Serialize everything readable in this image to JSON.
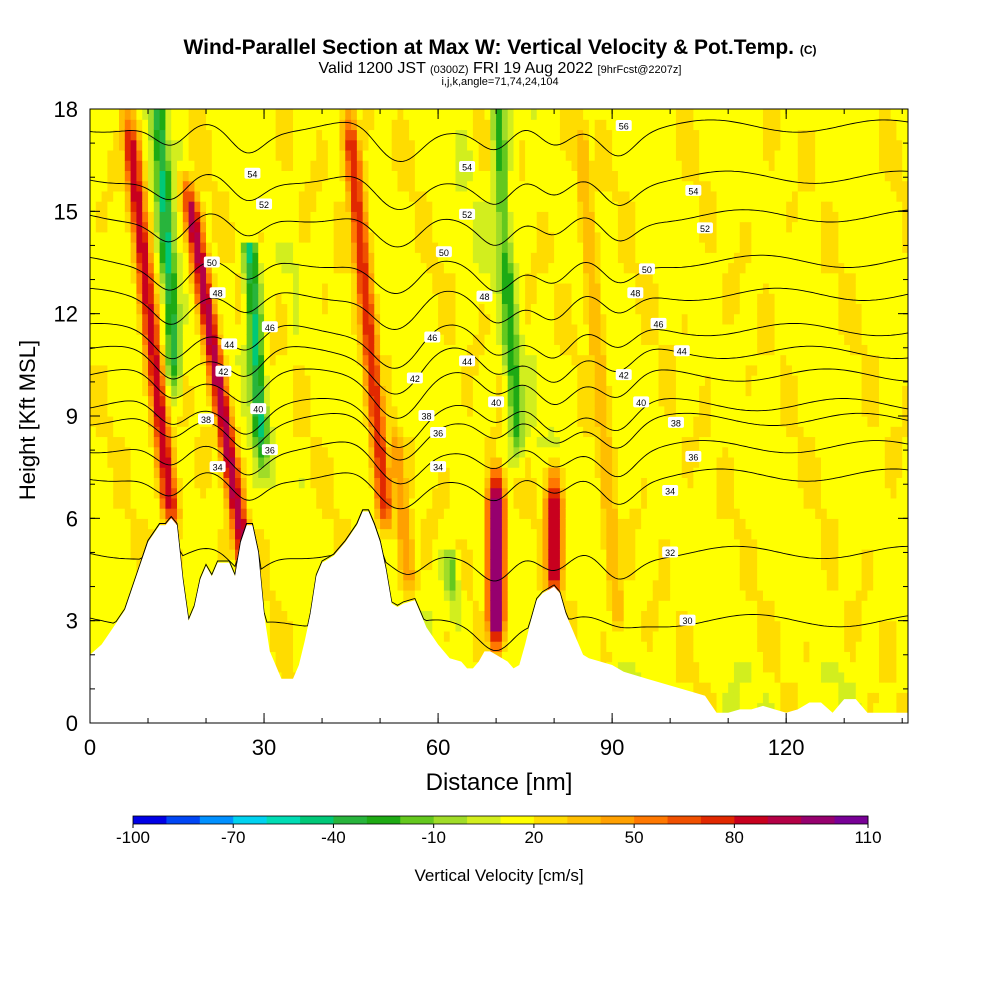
{
  "title": {
    "main": "Wind-Parallel Section at Max W: Vertical Velocity & Pot.Temp.",
    "copyright": "(C)",
    "valid_prefix": "Valid 1200 JST",
    "utc_time": "(0300Z)",
    "valid_date": "FRI 19 Aug 2022",
    "forecast": "[9hrFcst@2207z]",
    "params": "i,j,k,angle=71,74,24,104"
  },
  "chart_data": {
    "type": "heatmap",
    "xlabel": "Distance [nm]",
    "ylabel": "Height [Kft MSL]",
    "xlim": [
      0,
      141
    ],
    "ylim": [
      0,
      18
    ],
    "x_ticks": [
      "0",
      "30",
      "60",
      "90",
      "120"
    ],
    "y_ticks": [
      "0",
      "3",
      "6",
      "9",
      "12",
      "15",
      "18"
    ],
    "x_tick_values": [
      0,
      30,
      60,
      90,
      120
    ],
    "y_tick_values": [
      0,
      3,
      6,
      9,
      12,
      15,
      18
    ],
    "colorbar": {
      "label": "Vertical Velocity [cm/s]",
      "tick_labels": [
        "-100",
        "-70",
        "-40",
        "-10",
        "20",
        "50",
        "80",
        "110"
      ],
      "colors": [
        "#0000e6",
        "#0046f5",
        "#0090ff",
        "#00d2f0",
        "#00dcb4",
        "#00c878",
        "#28b43c",
        "#1eaa14",
        "#64c81e",
        "#a0dc28",
        "#d2ee1e",
        "#ffff00",
        "#ffdc00",
        "#ffbe00",
        "#ffa000",
        "#ff7800",
        "#f05000",
        "#e12800",
        "#c8001e",
        "#b40046",
        "#96006e",
        "#780096"
      ]
    },
    "updrafts": [
      {
        "x": 14,
        "z_base": 6.0,
        "z_top": 18,
        "tilt": -0.35,
        "peak": 80
      },
      {
        "x": 27,
        "z_base": 4.5,
        "z_top": 16,
        "tilt": -0.5,
        "peak": 90
      },
      {
        "x": 51,
        "z_base": 6.0,
        "z_top": 18,
        "tilt": -0.3,
        "peak": 70
      },
      {
        "x": 55,
        "z_base": 4.0,
        "z_top": 9,
        "tilt": -0.3,
        "peak": 40
      },
      {
        "x": 70,
        "z_base": 2.5,
        "z_top": 7.5,
        "tilt": 0,
        "peak": 110
      },
      {
        "x": 80,
        "z_base": 4.0,
        "z_top": 7.5,
        "tilt": 0,
        "peak": 85
      },
      {
        "x": 91,
        "z_base": 3.0,
        "z_top": 18,
        "tilt": -0.25,
        "peak": 30
      }
    ],
    "downdrafts": [
      {
        "x": 15,
        "z_base": 9,
        "z_top": 18,
        "peak": -55
      },
      {
        "x": 30,
        "z_base": 7,
        "z_top": 14,
        "peak": -60
      },
      {
        "x": 74,
        "z_base": 7,
        "z_top": 18,
        "peak": -40
      },
      {
        "x": 63,
        "z_base": 2.5,
        "z_top": 5,
        "peak": -30
      }
    ],
    "terrain": [
      [
        0,
        2
      ],
      [
        2,
        2.3
      ],
      [
        4,
        2.8
      ],
      [
        6,
        3.3
      ],
      [
        8,
        4.3
      ],
      [
        10,
        5.3
      ],
      [
        12,
        5.8
      ],
      [
        13,
        5.8
      ],
      [
        14,
        6
      ],
      [
        15,
        5.8
      ],
      [
        16,
        4.2
      ],
      [
        17,
        3.0
      ],
      [
        18,
        3.4
      ],
      [
        19,
        4.2
      ],
      [
        20,
        4.6
      ],
      [
        21,
        4.3
      ],
      [
        22,
        4.7
      ],
      [
        24,
        4.7
      ],
      [
        25,
        4.3
      ],
      [
        26,
        5.3
      ],
      [
        27,
        5.8
      ],
      [
        28,
        5.8
      ],
      [
        29,
        5
      ],
      [
        30,
        3.2
      ],
      [
        31,
        2.1
      ],
      [
        32,
        1.7
      ],
      [
        33,
        1.3
      ],
      [
        35,
        1.3
      ],
      [
        36,
        1.7
      ],
      [
        37,
        2.4
      ],
      [
        38,
        3.2
      ],
      [
        39,
        4.3
      ],
      [
        40,
        4.7
      ],
      [
        42,
        4.9
      ],
      [
        44,
        5.3
      ],
      [
        46,
        5.8
      ],
      [
        47,
        6.2
      ],
      [
        48,
        6.2
      ],
      [
        49,
        5.8
      ],
      [
        50,
        5.3
      ],
      [
        51,
        4.5
      ],
      [
        52,
        3.5
      ],
      [
        53,
        3.4
      ],
      [
        54,
        3.5
      ],
      [
        56,
        3.6
      ],
      [
        57,
        3.2
      ],
      [
        58,
        2.8
      ],
      [
        60,
        2.3
      ],
      [
        61,
        2.1
      ],
      [
        62,
        1.9
      ],
      [
        64,
        1.8
      ],
      [
        65,
        1.6
      ],
      [
        66,
        1.6
      ],
      [
        67,
        1.8
      ],
      [
        68,
        2.1
      ],
      [
        69,
        2.1
      ],
      [
        70,
        2
      ],
      [
        72,
        1.8
      ],
      [
        73,
        1.6
      ],
      [
        74,
        1.7
      ],
      [
        75,
        2.3
      ],
      [
        76,
        3.0
      ],
      [
        77,
        3.6
      ],
      [
        78,
        3.8
      ],
      [
        79,
        3.9
      ],
      [
        80,
        4.0
      ],
      [
        81,
        3.8
      ],
      [
        82,
        3.2
      ],
      [
        84,
        2.4
      ],
      [
        85,
        2.0
      ],
      [
        86,
        1.9
      ],
      [
        88,
        1.8
      ],
      [
        90,
        1.7
      ],
      [
        92,
        1.5
      ],
      [
        94,
        1.4
      ],
      [
        96,
        1.3
      ],
      [
        98,
        1.2
      ],
      [
        100,
        1.1
      ],
      [
        102,
        1.0
      ],
      [
        104,
        0.9
      ],
      [
        106,
        0.8
      ],
      [
        108,
        0.3
      ],
      [
        110,
        0.3
      ],
      [
        112,
        0.4
      ],
      [
        114,
        0.4
      ],
      [
        116,
        0.5
      ],
      [
        118,
        0.4
      ],
      [
        120,
        0.3
      ],
      [
        122,
        0.4
      ],
      [
        124,
        0.6
      ],
      [
        126,
        0.6
      ],
      [
        128,
        0.3
      ],
      [
        130,
        0.7
      ],
      [
        132,
        0.7
      ],
      [
        134,
        0.3
      ],
      [
        141,
        0.3
      ]
    ],
    "contours": [
      {
        "level": 30,
        "labels": [
          [
            103,
            3.0
          ]
        ]
      },
      {
        "level": 32,
        "labels": [
          [
            100,
            5.0
          ]
        ]
      },
      {
        "level": 34,
        "labels": [
          [
            22,
            7.5
          ],
          [
            60,
            7.5
          ],
          [
            100,
            6.8
          ]
        ]
      },
      {
        "level": 36,
        "labels": [
          [
            31,
            8.0
          ],
          [
            60,
            8.5
          ],
          [
            104,
            7.8
          ]
        ]
      },
      {
        "level": 38,
        "labels": [
          [
            20,
            8.9
          ],
          [
            58,
            9.0
          ],
          [
            101,
            8.8
          ]
        ]
      },
      {
        "level": 40,
        "labels": [
          [
            29,
            9.2
          ],
          [
            70,
            9.4
          ],
          [
            95,
            9.4
          ]
        ]
      },
      {
        "level": 42,
        "labels": [
          [
            23,
            10.3
          ],
          [
            56,
            10.1
          ],
          [
            92,
            10.2
          ]
        ]
      },
      {
        "level": 44,
        "labels": [
          [
            24,
            11.1
          ],
          [
            65,
            10.6
          ],
          [
            102,
            10.9
          ]
        ]
      },
      {
        "level": 46,
        "labels": [
          [
            31,
            11.6
          ],
          [
            59,
            11.3
          ],
          [
            98,
            11.7
          ]
        ]
      },
      {
        "level": 48,
        "labels": [
          [
            22,
            12.6
          ],
          [
            68,
            12.5
          ],
          [
            94,
            12.6
          ]
        ]
      },
      {
        "level": 50,
        "labels": [
          [
            21,
            13.5
          ],
          [
            61,
            13.8
          ],
          [
            96,
            13.3
          ]
        ]
      },
      {
        "level": 52,
        "labels": [
          [
            30,
            15.2
          ],
          [
            65,
            14.9
          ],
          [
            106,
            14.5
          ]
        ]
      },
      {
        "level": 54,
        "labels": [
          [
            28,
            16.1
          ],
          [
            65,
            16.3
          ],
          [
            104,
            15.6
          ]
        ]
      },
      {
        "level": 56,
        "labels": [
          [
            92,
            17.5
          ]
        ]
      }
    ]
  }
}
